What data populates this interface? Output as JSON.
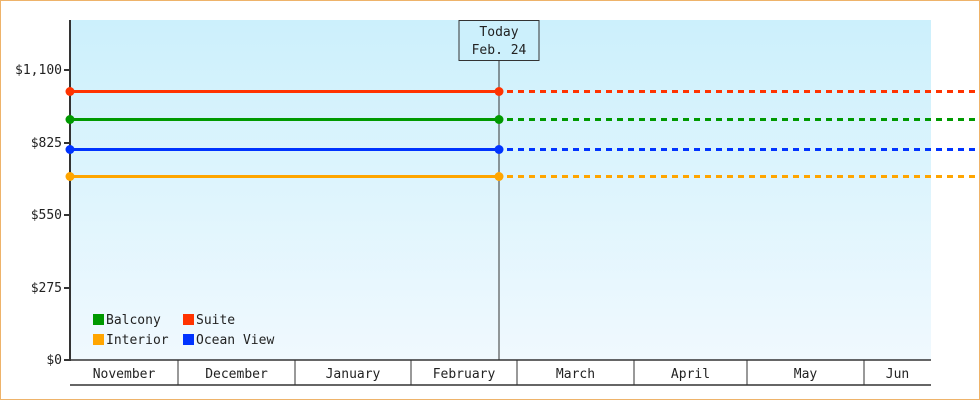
{
  "chart_data": {
    "type": "line",
    "title": "",
    "xlabel": "",
    "ylabel": "",
    "ylim": [
      0,
      1290
    ],
    "y_ticks": [
      0,
      275,
      550,
      825,
      1100
    ],
    "y_tick_labels": [
      "$0",
      "$275",
      "$550",
      "$825",
      "$1,100"
    ],
    "categories": [
      "November",
      "December",
      "January",
      "February",
      "March",
      "April",
      "May",
      "Jun"
    ],
    "grid": false,
    "legend_position": "bottom-left",
    "today": {
      "line1": "Today",
      "line2": "Feb. 24"
    },
    "series": [
      {
        "name": "Suite",
        "color": "#ff3300",
        "value": 1020
      },
      {
        "name": "Balcony",
        "color": "#009900",
        "value": 916
      },
      {
        "name": "Ocean View",
        "color": "#0033ff",
        "value": 800
      },
      {
        "name": "Interior",
        "color": "#ffa500",
        "value": 698
      }
    ],
    "legend_order": [
      "Balcony",
      "Suite",
      "Interior",
      "Ocean View"
    ],
    "style_note_solid_before_today_dotted_after": true
  }
}
